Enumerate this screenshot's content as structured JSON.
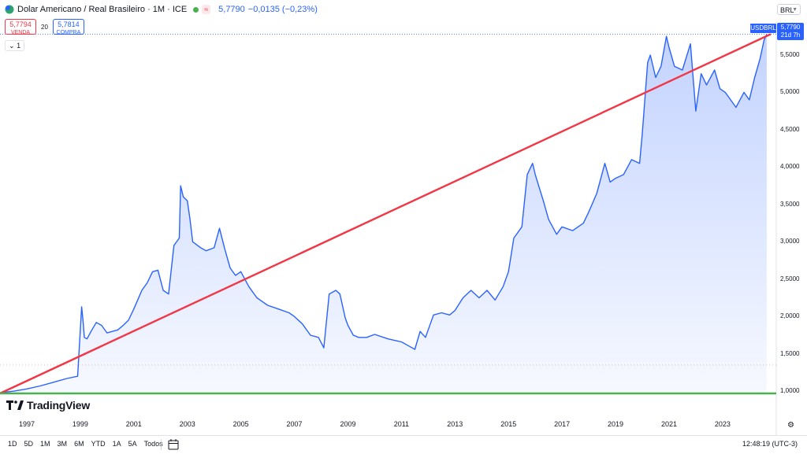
{
  "header": {
    "title": "Dolar Americano / Real Brasileiro · 1M · ICE",
    "flag": "≈",
    "last": "5,7790",
    "change": "−0,0135 (−0,23%)"
  },
  "quotes": {
    "sell_value": "5,7794",
    "sell_label": "VENDA",
    "spread": "20",
    "buy_value": "5,7814",
    "buy_label": "COMPRA"
  },
  "indicator_toggle": "1",
  "currency": "BRL",
  "symbol_tag": "USDBRL",
  "price_tag": {
    "price": "5,7790",
    "countdown": "21d 7h"
  },
  "logo_text": "TradingView",
  "y_axis_labels": [
    "5,5000",
    "5,0000",
    "4,5000",
    "4,0000",
    "3,5000",
    "3,0000",
    "2,5000",
    "2,0000",
    "1,5000",
    "1,0000"
  ],
  "x_axis_labels": [
    "1997",
    "1999",
    "2001",
    "2003",
    "2005",
    "2007",
    "2009",
    "2011",
    "2013",
    "2015",
    "2017",
    "2019",
    "2021",
    "2023"
  ],
  "time_ranges": [
    "1D",
    "5D",
    "1M",
    "3M",
    "6M",
    "YTD",
    "1A",
    "5A",
    "Todos"
  ],
  "clock": "12:48:19 (UTC-3)",
  "colors": {
    "line": "#2962ff",
    "fill_top": "#2962ff",
    "trend_line": "#f23645",
    "support_line": "#4caf50",
    "sell": "#f23645",
    "buy": "#2962ff",
    "market_dot": "#4caf50"
  },
  "chart_data": {
    "type": "area",
    "title": "Dolar Americano / Real Brasileiro · 1M · ICE",
    "xlabel": "",
    "ylabel": "",
    "ylim": [
      0.97,
      5.9
    ],
    "y_ticks": [
      1.0,
      1.5,
      2.0,
      2.5,
      3.0,
      3.5,
      4.0,
      4.5,
      5.0,
      5.5
    ],
    "grid": false,
    "log_scale": false,
    "series": [
      {
        "name": "USDBRL",
        "x": [
          1996.0,
          1996.5,
          1997.0,
          1997.5,
          1998.0,
          1998.5,
          1998.9,
          1999.05,
          1999.1,
          1999.15,
          1999.25,
          1999.4,
          1999.6,
          1999.8,
          2000.0,
          2000.2,
          2000.4,
          2000.6,
          2000.8,
          2001.0,
          2001.3,
          2001.5,
          2001.7,
          2001.9,
          2002.1,
          2002.3,
          2002.5,
          2002.7,
          2002.75,
          2002.85,
          2003.0,
          2003.1,
          2003.2,
          2003.5,
          2003.7,
          2004.0,
          2004.2,
          2004.4,
          2004.6,
          2004.8,
          2005.0,
          2005.3,
          2005.6,
          2006.0,
          2006.4,
          2006.8,
          2007.0,
          2007.3,
          2007.6,
          2007.9,
          2008.1,
          2008.3,
          2008.55,
          2008.7,
          2008.9,
          2009.0,
          2009.2,
          2009.4,
          2009.7,
          2010.0,
          2010.5,
          2011.0,
          2011.3,
          2011.5,
          2011.7,
          2011.9,
          2012.2,
          2012.5,
          2012.8,
          2013.0,
          2013.3,
          2013.6,
          2013.9,
          2014.2,
          2014.5,
          2014.8,
          2015.0,
          2015.2,
          2015.5,
          2015.7,
          2015.9,
          2016.0,
          2016.3,
          2016.5,
          2016.8,
          2017.0,
          2017.4,
          2017.8,
          2018.0,
          2018.3,
          2018.6,
          2018.8,
          2019.0,
          2019.3,
          2019.6,
          2019.9,
          2020.0,
          2020.2,
          2020.3,
          2020.5,
          2020.7,
          2020.9,
          2021.0,
          2021.2,
          2021.5,
          2021.8,
          2022.0,
          2022.2,
          2022.4,
          2022.7,
          2022.9,
          2023.1,
          2023.3,
          2023.5,
          2023.8,
          2024.0,
          2024.2,
          2024.4,
          2024.55,
          2024.65
        ],
        "values": [
          0.98,
          1.0,
          1.03,
          1.07,
          1.12,
          1.17,
          1.2,
          2.13,
          1.95,
          1.72,
          1.7,
          1.8,
          1.92,
          1.88,
          1.78,
          1.8,
          1.82,
          1.88,
          1.95,
          2.1,
          2.35,
          2.45,
          2.6,
          2.62,
          2.35,
          2.3,
          2.95,
          3.05,
          3.75,
          3.6,
          3.55,
          3.3,
          3.0,
          2.92,
          2.88,
          2.92,
          3.18,
          2.9,
          2.65,
          2.55,
          2.6,
          2.4,
          2.25,
          2.15,
          2.1,
          2.05,
          2.0,
          1.9,
          1.75,
          1.72,
          1.58,
          2.3,
          2.35,
          2.3,
          1.98,
          1.88,
          1.75,
          1.72,
          1.72,
          1.76,
          1.7,
          1.66,
          1.6,
          1.56,
          1.8,
          1.72,
          2.02,
          2.05,
          2.02,
          2.08,
          2.25,
          2.35,
          2.25,
          2.35,
          2.22,
          2.4,
          2.6,
          3.05,
          3.2,
          3.9,
          4.05,
          3.9,
          3.55,
          3.3,
          3.1,
          3.2,
          3.15,
          3.25,
          3.4,
          3.65,
          4.05,
          3.8,
          3.85,
          3.9,
          4.1,
          4.05,
          4.45,
          5.4,
          5.5,
          5.2,
          5.35,
          5.75,
          5.6,
          5.35,
          5.3,
          5.65,
          4.75,
          5.25,
          5.1,
          5.3,
          5.05,
          5.0,
          4.9,
          4.8,
          5.0,
          4.9,
          5.2,
          5.45,
          5.7,
          5.78
        ]
      }
    ],
    "overlays": [
      {
        "type": "trend_line",
        "from": [
          1996.0,
          0.97
        ],
        "to": [
          2024.8,
          5.78
        ]
      },
      {
        "type": "horizontal_line",
        "y": 0.97
      }
    ]
  }
}
